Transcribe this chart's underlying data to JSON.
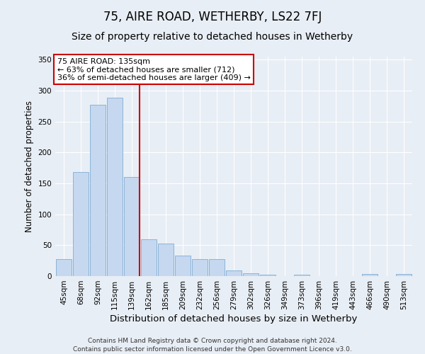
{
  "title": "75, AIRE ROAD, WETHERBY, LS22 7FJ",
  "subtitle": "Size of property relative to detached houses in Wetherby",
  "xlabel": "Distribution of detached houses by size in Wetherby",
  "ylabel": "Number of detached properties",
  "bar_labels": [
    "45sqm",
    "68sqm",
    "92sqm",
    "115sqm",
    "139sqm",
    "162sqm",
    "185sqm",
    "209sqm",
    "232sqm",
    "256sqm",
    "279sqm",
    "302sqm",
    "326sqm",
    "349sqm",
    "373sqm",
    "396sqm",
    "419sqm",
    "443sqm",
    "466sqm",
    "490sqm",
    "513sqm"
  ],
  "bar_values": [
    28,
    168,
    277,
    289,
    160,
    59,
    53,
    33,
    27,
    27,
    9,
    5,
    2,
    0,
    2,
    0,
    0,
    0,
    3,
    0,
    3
  ],
  "bar_color": "#c5d8f0",
  "bar_edge_color": "#8ab4d8",
  "vline_x_index": 4,
  "vline_color": "#cc0000",
  "annotation_text": "75 AIRE ROAD: 135sqm\n← 63% of detached houses are smaller (712)\n36% of semi-detached houses are larger (409) →",
  "annotation_box_color": "#ffffff",
  "annotation_box_edge_color": "#cc0000",
  "ylim": [
    0,
    355
  ],
  "yticks": [
    0,
    50,
    100,
    150,
    200,
    250,
    300,
    350
  ],
  "background_color": "#e8eef5",
  "plot_background_color": "#e8eef5",
  "footer_line1": "Contains HM Land Registry data © Crown copyright and database right 2024.",
  "footer_line2": "Contains public sector information licensed under the Open Government Licence v3.0.",
  "title_fontsize": 12,
  "subtitle_fontsize": 10,
  "xlabel_fontsize": 9.5,
  "ylabel_fontsize": 8.5,
  "tick_fontsize": 7.5,
  "footer_fontsize": 6.5,
  "annotation_fontsize": 8
}
